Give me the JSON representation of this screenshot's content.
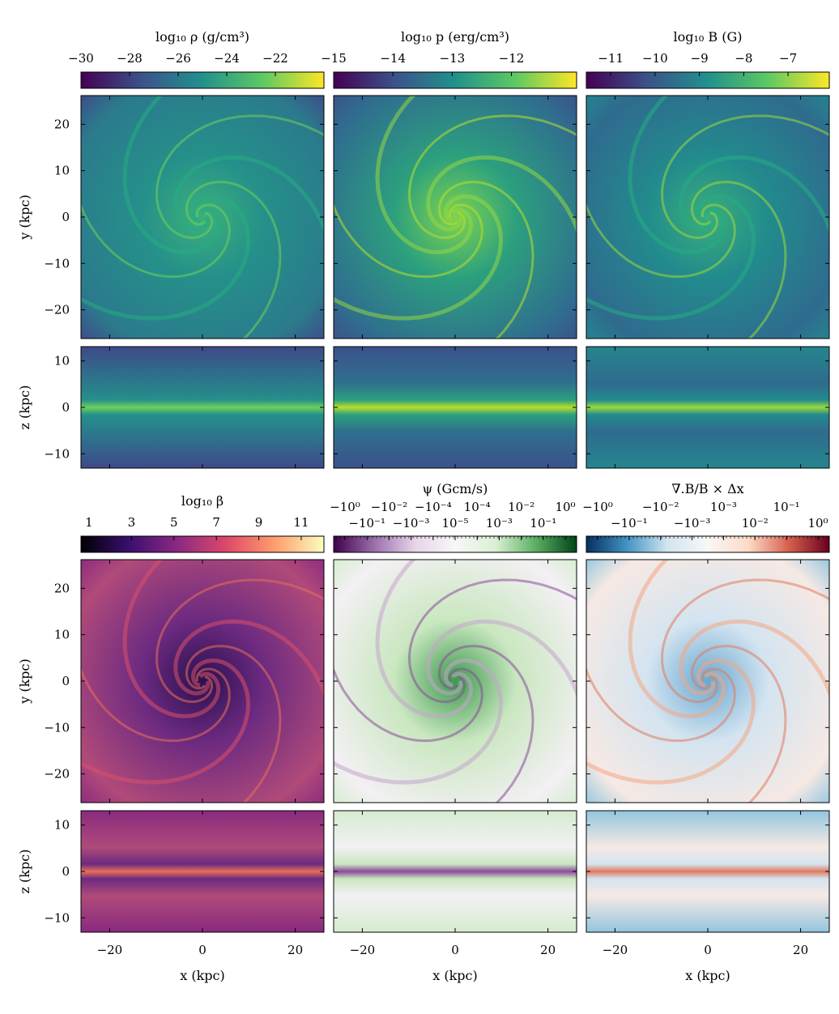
{
  "chart_data": [
    {
      "type": "heatmap",
      "title": "log₁₀ ρ (g/cm³)",
      "colormap": "viridis",
      "cbar_range": [
        -30,
        -20
      ],
      "cbar_ticks": [
        -30,
        -28,
        -26,
        -24,
        -22
      ],
      "cbar_ticklabels": [
        "−30",
        "−28",
        "−26",
        "−24",
        "−22"
      ],
      "colors": [
        "#440154",
        "#3b528b",
        "#21918c",
        "#5ec962",
        "#fde725"
      ]
    },
    {
      "type": "heatmap",
      "title": "log₁₀ p (erg/cm³)",
      "colormap": "viridis",
      "cbar_range": [
        -15,
        -10.9
      ],
      "cbar_ticks": [
        -15,
        -14,
        -13,
        -12
      ],
      "cbar_ticklabels": [
        "−15",
        "−14",
        "−13",
        "−12"
      ],
      "colors": [
        "#440154",
        "#3b528b",
        "#21918c",
        "#5ec962",
        "#fde725"
      ]
    },
    {
      "type": "heatmap",
      "title": "log₁₀ B (G)",
      "colormap": "viridis",
      "cbar_range": [
        -11.55,
        -6.07
      ],
      "cbar_ticks": [
        -11,
        -10,
        -9,
        -8,
        -7
      ],
      "cbar_ticklabels": [
        "−11",
        "−10",
        "−9",
        "−8",
        "−7"
      ],
      "colors": [
        "#440154",
        "#3b528b",
        "#21918c",
        "#5ec962",
        "#fde725"
      ]
    },
    {
      "type": "heatmap",
      "title": "log₁₀ β",
      "colormap": "magma",
      "cbar_range": [
        0.62,
        12.07
      ],
      "cbar_ticks": [
        1,
        3,
        5,
        7,
        9,
        11
      ],
      "cbar_ticklabels": [
        "1",
        "3",
        "5",
        "7",
        "9",
        "11"
      ],
      "colors": [
        "#000004",
        "#3b0f70",
        "#8c2981",
        "#de4968",
        "#fe9f6d",
        "#fcfdbf"
      ]
    },
    {
      "type": "heatmap",
      "title": "ψ (Gcm/s)",
      "colormap": "PRGn",
      "scale": "symlog",
      "cbar_ticklabels": [
        "−10⁰",
        "−10⁻¹",
        "−10⁻²",
        "−10⁻³",
        "−10⁻⁴",
        "10⁻⁵",
        "10⁻⁴",
        "10⁻³",
        "10⁻²",
        "10⁻¹",
        "10⁰"
      ],
      "colors": [
        "#40004b",
        "#9970ab",
        "#e7d4e8",
        "#f7f7f7",
        "#d9f0d3",
        "#5aae61",
        "#00441b"
      ]
    },
    {
      "type": "heatmap",
      "title": "∇.B/B × Δx",
      "colormap": "RdBu_r",
      "scale": "symlog",
      "cbar_ticklabels": [
        "−10⁰",
        "−10⁻¹",
        "−10⁻²",
        "−10⁻³",
        "10⁻³",
        "10⁻²",
        "10⁻¹",
        "10⁰"
      ],
      "colors": [
        "#053061",
        "#4393c3",
        "#d1e5f0",
        "#f7f7f7",
        "#fddbc7",
        "#d6604d",
        "#67001f"
      ]
    }
  ],
  "axes": {
    "xlabel": "x (kpc)",
    "ylabel_xy": "y (kpc)",
    "ylabel_xz": "z (kpc)",
    "x_ticks": [
      -20,
      0,
      20
    ],
    "x_ticklabels": [
      "−20",
      "0",
      "20"
    ],
    "y_ticks": [
      20,
      10,
      0,
      -10,
      -20
    ],
    "y_ticklabels": [
      "20",
      "10",
      "0",
      "−10",
      "−20"
    ],
    "z_ticks": [
      10,
      0,
      -10
    ],
    "z_ticklabels": [
      "10",
      "0",
      "−10"
    ],
    "xy_range": [
      -26.2,
      26.2
    ],
    "z_range": [
      -13.1,
      13.1
    ]
  }
}
